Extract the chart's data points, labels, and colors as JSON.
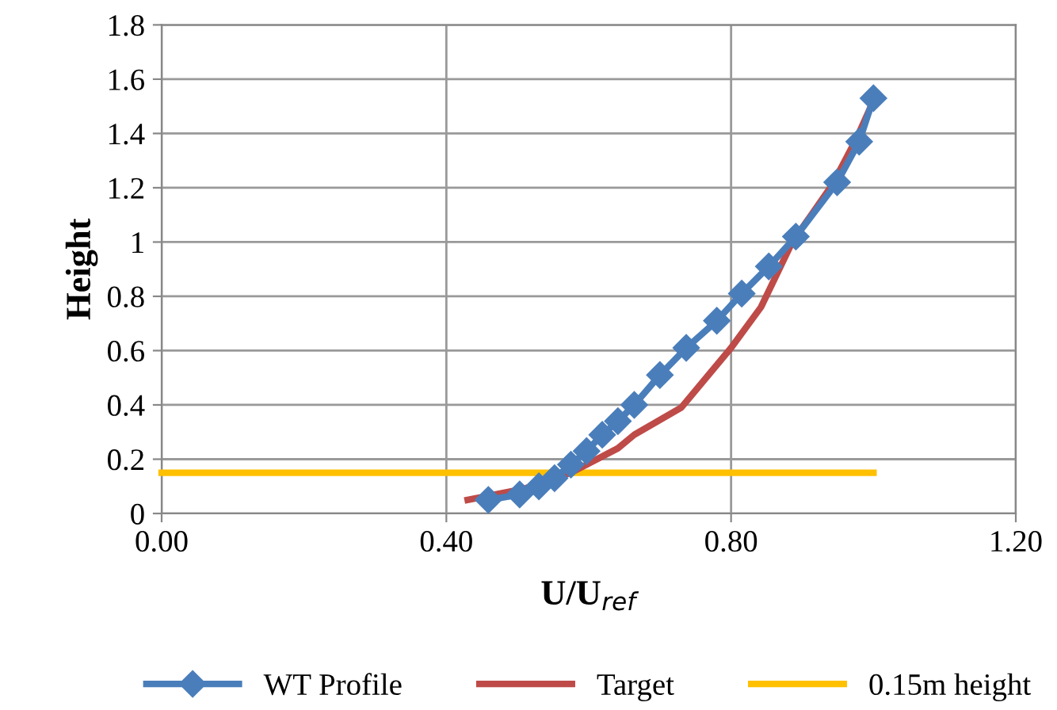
{
  "chart_data": {
    "type": "line",
    "xlabel": "U/U$_{ref}$",
    "ylabel": "Height",
    "xlim": [
      0,
      1.2
    ],
    "xticks": [
      {
        "value": 0,
        "label": "0.00"
      },
      {
        "value": 0.4,
        "label": "0.40"
      },
      {
        "value": 0.8,
        "label": "0.80"
      },
      {
        "value": 1.2,
        "label": "1.20"
      }
    ],
    "ylim": [
      0,
      1.8
    ],
    "yticks": [
      0,
      0.2,
      0.4,
      0.6,
      0.8,
      1,
      1.2,
      1.4,
      1.6,
      1.8
    ],
    "grid": true,
    "legend": "bottom",
    "series": [
      {
        "name": "WT Profile",
        "color": "#4a7ebb",
        "marker": "diamond",
        "x": [
          0.459,
          0.503,
          0.53,
          0.552,
          0.575,
          0.597,
          0.619,
          0.641,
          0.664,
          0.7,
          0.737,
          0.78,
          0.815,
          0.853,
          0.891,
          0.949,
          0.98,
          1.0
        ],
        "values": [
          0.05,
          0.07,
          0.1,
          0.13,
          0.18,
          0.23,
          0.29,
          0.34,
          0.4,
          0.51,
          0.61,
          0.71,
          0.81,
          0.91,
          1.02,
          1.22,
          1.37,
          1.53
        ]
      },
      {
        "name": "Target",
        "color": "#be4b48",
        "x": [
          0.43,
          0.508,
          0.575,
          0.641,
          0.664,
          0.73,
          0.8,
          0.842,
          0.886,
          0.942,
          0.976,
          1.0
        ],
        "values": [
          0.05,
          0.09,
          0.15,
          0.24,
          0.29,
          0.39,
          0.61,
          0.76,
          1.0,
          1.21,
          1.38,
          1.52
        ]
      },
      {
        "name": "0.15m height",
        "color": "#ffc000",
        "x": [
          0,
          1.0
        ],
        "values": [
          0.15,
          0.15
        ]
      }
    ]
  }
}
